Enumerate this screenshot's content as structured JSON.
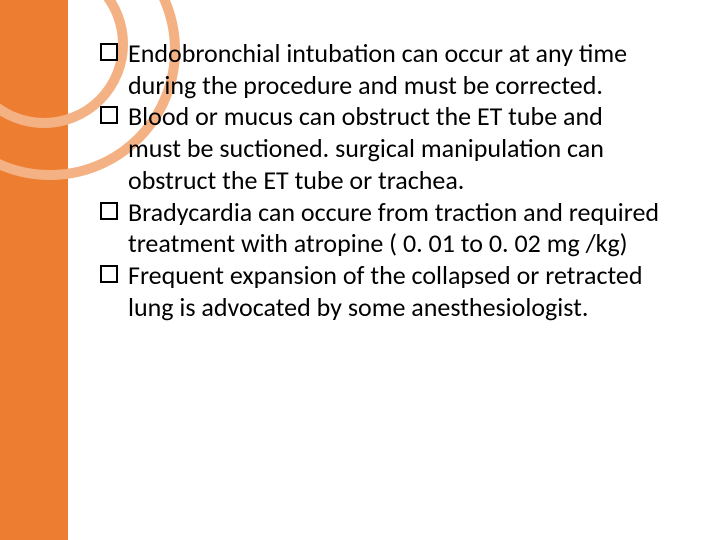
{
  "slide": {
    "background_color": "#ffffff",
    "sidebar_color": "#ed7d31",
    "ring_color": "#f4b183",
    "text_color": "#000000",
    "bullet_border_color": "#000000",
    "font_family": "Calibri",
    "body_fontsize": 26,
    "bullets": [
      "Endobronchial intubation can occur at any time during the procedure and must be corrected.",
      "Blood or mucus can obstruct the ET tube and must be suctioned. surgical manipulation can obstruct the ET tube or trachea.",
      "Bradycardia  can occure from traction and required treatment with atropine ( 0. 01 to 0. 02 mg /kg)",
      "Frequent expansion of the collapsed or retracted lung is advocated by some anesthesiologist."
    ]
  }
}
